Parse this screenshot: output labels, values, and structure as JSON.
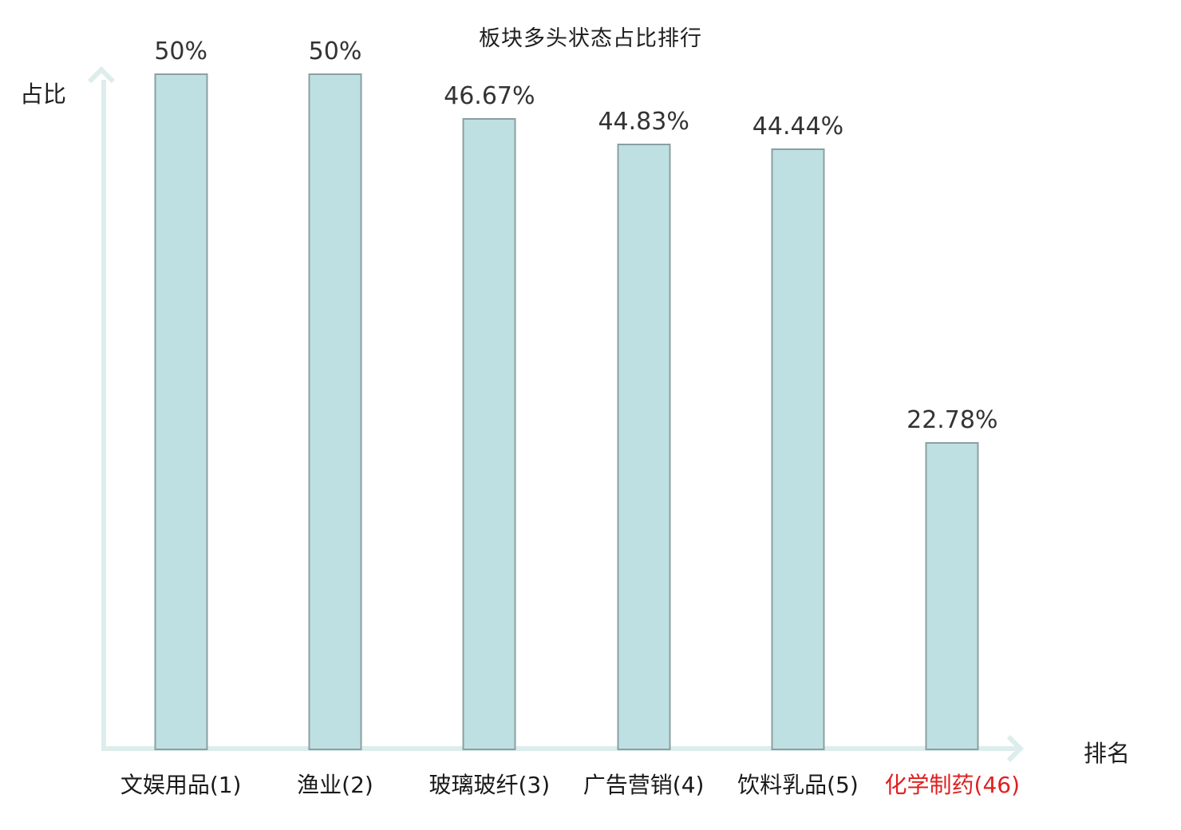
{
  "title": "板块多头状态占比排行",
  "chart_data": {
    "type": "bar",
    "title": "板块多头状态占比排行",
    "xlabel": "排名",
    "ylabel": "占比",
    "categories": [
      "文娱用品(1)",
      "渔业(2)",
      "玻璃玻纤(3)",
      "广告营销(4)",
      "饮料乳品(5)",
      "化学制药(46)"
    ],
    "values": [
      50,
      50,
      46.67,
      44.83,
      44.44,
      22.78
    ],
    "display_values": [
      "50%",
      "50%",
      "46.67%",
      "44.83%",
      "44.44%",
      "22.78%"
    ],
    "highlighted_category_index": 5,
    "ylim": [
      0,
      50
    ],
    "grid": false,
    "legend": null,
    "axis_style": "arrow"
  },
  "colors": {
    "background": "#ffffff",
    "bar_fill": "#bfe0e2",
    "bar_border": "#8b9fa2",
    "axis": "#dcedec",
    "value_label": "#333333",
    "category_label": "#1a1a1a",
    "highlight_label": "#e01f1f",
    "text": "#1f1f1f"
  }
}
